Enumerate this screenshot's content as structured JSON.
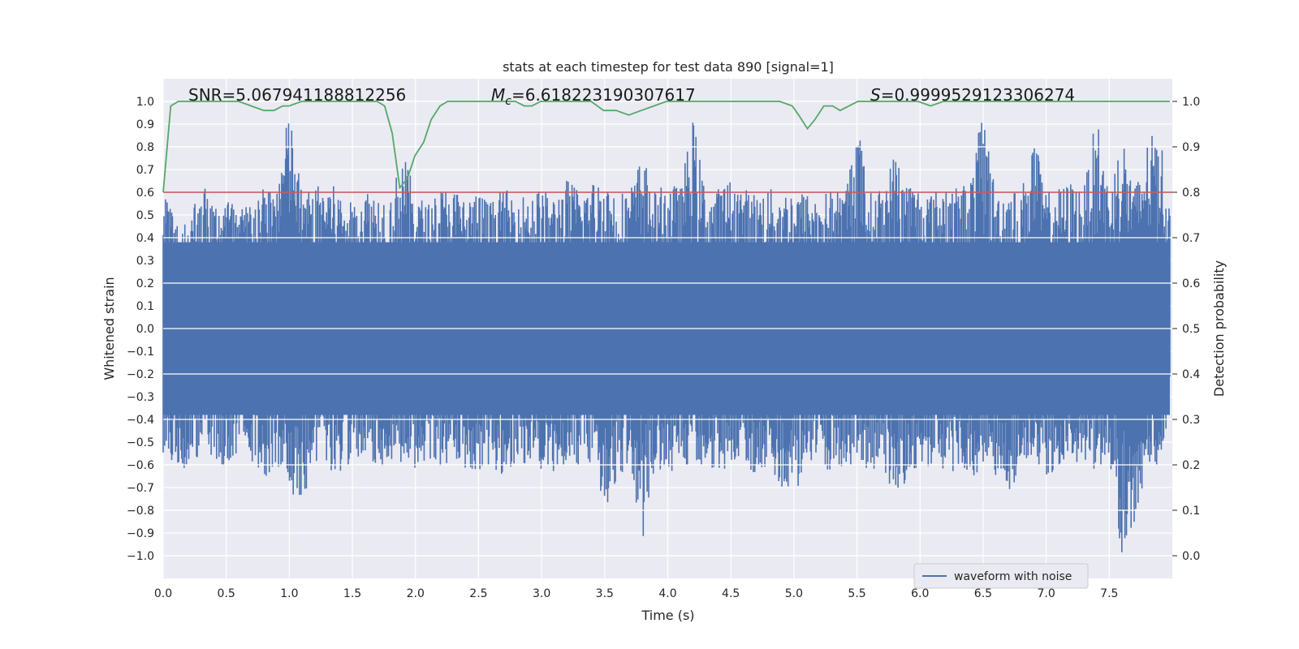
{
  "chart_data": {
    "type": "line",
    "title": "stats at each timestep for test data 890 [signal=1]",
    "xlabel": "Time (s)",
    "ylabel": "Whitened strain",
    "y2label": "Detection probability",
    "xlim": [
      0.0,
      8.0
    ],
    "ylim": [
      -1.1,
      1.1
    ],
    "y2lim": [
      -0.05,
      1.05
    ],
    "x_ticks": [
      0.0,
      0.5,
      1.0,
      1.5,
      2.0,
      2.5,
      3.0,
      3.5,
      4.0,
      4.5,
      5.0,
      5.5,
      6.0,
      6.5,
      7.0,
      7.5
    ],
    "x_tick_labels": [
      "0.0",
      "0.5",
      "1.0",
      "1.5",
      "2.0",
      "2.5",
      "3.0",
      "3.5",
      "4.0",
      "4.5",
      "5.0",
      "5.5",
      "6.0",
      "6.5",
      "7.0",
      "7.5"
    ],
    "y_ticks": [
      -1.0,
      -0.9,
      -0.8,
      -0.7,
      -0.6,
      -0.5,
      -0.4,
      -0.3,
      -0.2,
      -0.1,
      0.0,
      0.1,
      0.2,
      0.3,
      0.4,
      0.5,
      0.6,
      0.7,
      0.8,
      0.9,
      1.0
    ],
    "y_tick_labels": [
      "−1.0",
      "−0.9",
      "−0.8",
      "−0.7",
      "−0.6",
      "−0.5",
      "−0.4",
      "−0.3",
      "−0.2",
      "−0.1",
      "0.0",
      "0.1",
      "0.2",
      "0.3",
      "0.4",
      "0.5",
      "0.6",
      "0.7",
      "0.8",
      "0.9",
      "1.0"
    ],
    "y2_ticks": [
      0.0,
      0.1,
      0.2,
      0.3,
      0.4,
      0.5,
      0.6,
      0.7,
      0.8,
      0.9,
      1.0
    ],
    "y2_tick_labels": [
      "0.0",
      "0.1",
      "0.2",
      "0.3",
      "0.4",
      "0.5",
      "0.6",
      "0.7",
      "0.8",
      "0.9",
      "1.0"
    ],
    "grid": true,
    "legend": {
      "placement": "lower-right",
      "entries": [
        {
          "label": "waveform with noise",
          "color": "#4c72b0"
        }
      ]
    },
    "annotations": {
      "snr": "SNR=5.067941188812256",
      "mc_symbol": "M",
      "mc_sub": "c",
      "mc_value": "=6.618223190307617",
      "s_symbol": "S",
      "s_value": "=0.9999529123306274"
    },
    "threshold": {
      "axis": "y2",
      "value": 0.8,
      "color": "#c44e52"
    },
    "series": [
      {
        "name": "waveform with noise",
        "axis": "y",
        "color": "#4c72b0",
        "envelope": {
          "x": [
            0.0,
            0.1,
            0.2,
            0.3,
            0.4,
            0.5,
            0.6,
            0.7,
            0.8,
            0.9,
            1.0,
            1.1,
            1.2,
            1.3,
            1.4,
            1.5,
            1.6,
            1.7,
            1.8,
            1.9,
            2.0,
            2.1,
            2.2,
            2.3,
            2.4,
            2.5,
            2.6,
            2.7,
            2.8,
            2.9,
            3.0,
            3.1,
            3.2,
            3.3,
            3.4,
            3.5,
            3.6,
            3.7,
            3.8,
            3.9,
            4.0,
            4.1,
            4.2,
            4.3,
            4.4,
            4.5,
            4.6,
            4.7,
            4.8,
            4.9,
            5.0,
            5.1,
            5.2,
            5.3,
            5.4,
            5.5,
            5.6,
            5.7,
            5.8,
            5.9,
            6.0,
            6.1,
            6.2,
            6.3,
            6.4,
            6.5,
            6.6,
            6.7,
            6.8,
            6.9,
            7.0,
            7.1,
            7.2,
            7.3,
            7.4,
            7.5,
            7.6,
            7.7,
            7.8,
            7.9,
            8.0
          ],
          "upper": [
            0.6,
            0.5,
            0.48,
            0.66,
            0.55,
            0.6,
            0.52,
            0.58,
            0.62,
            0.65,
            0.97,
            0.6,
            0.62,
            0.66,
            0.6,
            0.55,
            0.62,
            0.6,
            0.58,
            0.78,
            0.6,
            0.55,
            0.62,
            0.62,
            0.58,
            0.6,
            0.56,
            0.62,
            0.58,
            0.6,
            0.62,
            0.58,
            0.66,
            0.62,
            0.65,
            0.66,
            0.6,
            0.62,
            0.77,
            0.6,
            0.65,
            0.62,
            0.93,
            0.6,
            0.62,
            0.66,
            0.62,
            0.6,
            0.62,
            0.6,
            0.62,
            0.6,
            0.58,
            0.62,
            0.6,
            0.92,
            0.6,
            0.62,
            0.78,
            0.66,
            0.62,
            0.6,
            0.65,
            0.62,
            0.66,
            0.98,
            0.6,
            0.62,
            0.6,
            0.86,
            0.6,
            0.62,
            0.65,
            0.62,
            0.95,
            0.6,
            0.87,
            0.62,
            0.82,
            0.9,
            0.4
          ],
          "lower": [
            -0.55,
            -0.6,
            -0.62,
            -0.55,
            -0.58,
            -0.63,
            -0.6,
            -0.58,
            -0.66,
            -0.6,
            -0.71,
            -0.78,
            -0.6,
            -0.62,
            -0.65,
            -0.58,
            -0.6,
            -0.62,
            -0.58,
            -0.6,
            -0.62,
            -0.58,
            -0.65,
            -0.6,
            -0.62,
            -0.63,
            -0.6,
            -0.66,
            -0.58,
            -0.6,
            -0.62,
            -0.65,
            -0.6,
            -0.62,
            -0.6,
            -0.87,
            -0.65,
            -0.62,
            -0.94,
            -0.6,
            -0.65,
            -0.6,
            -0.62,
            -0.6,
            -0.63,
            -0.62,
            -0.6,
            -0.65,
            -0.62,
            -0.7,
            -0.75,
            -0.62,
            -0.6,
            -0.65,
            -0.62,
            -0.6,
            -0.62,
            -0.65,
            -0.74,
            -0.7,
            -0.63,
            -0.6,
            -0.65,
            -0.62,
            -0.67,
            -0.6,
            -0.65,
            -0.77,
            -0.62,
            -0.6,
            -0.65,
            -0.62,
            -0.6,
            -0.63,
            -0.62,
            -0.6,
            -1.0,
            -0.86,
            -0.62,
            -0.6,
            -0.3
          ]
        }
      },
      {
        "name": "Detection probability",
        "axis": "y2",
        "color": "#55a868",
        "x": [
          0.0,
          0.06,
          0.12,
          0.2,
          0.3,
          0.4,
          0.5,
          0.6,
          0.7,
          0.8,
          0.88,
          0.95,
          1.0,
          1.1,
          1.2,
          1.3,
          1.4,
          1.5,
          1.6,
          1.7,
          1.76,
          1.82,
          1.88,
          1.94,
          2.0,
          2.07,
          2.13,
          2.2,
          2.26,
          2.3,
          2.4,
          2.5,
          2.6,
          2.7,
          2.8,
          2.87,
          2.93,
          3.0,
          3.1,
          3.2,
          3.3,
          3.4,
          3.5,
          3.6,
          3.7,
          3.8,
          3.9,
          4.0,
          4.1,
          4.2,
          4.3,
          4.4,
          4.5,
          4.6,
          4.7,
          4.8,
          4.9,
          5.0,
          5.05,
          5.12,
          5.18,
          5.25,
          5.32,
          5.38,
          5.45,
          5.52,
          5.6,
          5.7,
          5.8,
          5.9,
          6.0,
          6.1,
          6.2,
          6.3,
          6.4,
          6.5,
          6.6,
          6.7,
          6.8,
          6.9,
          7.0,
          7.1,
          7.2,
          7.3,
          7.4,
          7.5,
          7.6,
          7.7,
          7.8,
          7.9,
          8.0
        ],
        "y": [
          0.8,
          0.99,
          1.0,
          1.0,
          1.0,
          1.0,
          1.0,
          1.0,
          0.99,
          0.98,
          0.98,
          0.99,
          0.99,
          1.0,
          1.0,
          1.0,
          1.0,
          1.0,
          1.0,
          1.0,
          0.99,
          0.93,
          0.81,
          0.83,
          0.88,
          0.91,
          0.96,
          0.99,
          1.0,
          1.0,
          1.0,
          1.0,
          1.0,
          1.0,
          1.0,
          0.99,
          0.99,
          1.0,
          1.0,
          1.0,
          1.0,
          1.0,
          0.98,
          0.98,
          0.97,
          0.98,
          0.99,
          1.0,
          1.0,
          1.0,
          1.0,
          1.0,
          1.0,
          1.0,
          1.0,
          1.0,
          1.0,
          0.99,
          0.97,
          0.94,
          0.96,
          0.99,
          0.99,
          0.98,
          0.99,
          1.0,
          1.0,
          1.0,
          1.0,
          1.0,
          1.0,
          0.99,
          1.0,
          1.0,
          1.0,
          1.0,
          1.0,
          1.0,
          1.0,
          1.0,
          1.0,
          1.0,
          1.0,
          1.0,
          1.0,
          1.0,
          1.0,
          1.0,
          1.0,
          1.0,
          1.0
        ]
      }
    ]
  }
}
